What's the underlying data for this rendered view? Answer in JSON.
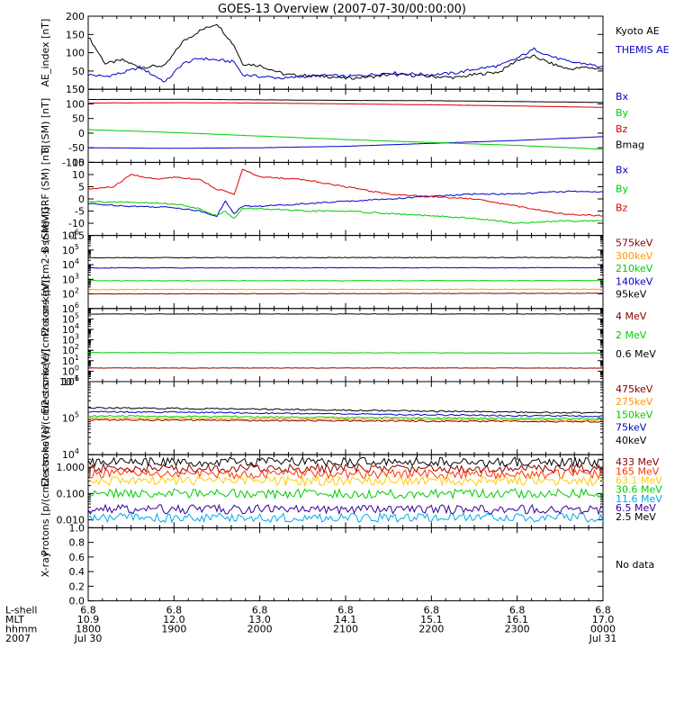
{
  "title": "GOES-13 Overview (2007-07-30/00:00:00)",
  "time_axis": {
    "row_labels": [
      "L-shell",
      "MLT",
      "hhmm",
      "2007"
    ],
    "ticks": [
      {
        "lshell": "6.8",
        "mlt": "10.9",
        "hhmm": "1800",
        "date": "Jul 30"
      },
      {
        "lshell": "6.8",
        "mlt": "12.0",
        "hhmm": "1900",
        "date": ""
      },
      {
        "lshell": "6.8",
        "mlt": "13.0",
        "hhmm": "2000",
        "date": ""
      },
      {
        "lshell": "6.8",
        "mlt": "14.1",
        "hhmm": "2100",
        "date": ""
      },
      {
        "lshell": "6.8",
        "mlt": "15.1",
        "hhmm": "2200",
        "date": ""
      },
      {
        "lshell": "6.8",
        "mlt": "16.1",
        "hhmm": "2300",
        "date": ""
      },
      {
        "lshell": "6.8",
        "mlt": "17.0",
        "hhmm": "0000",
        "date": "Jul 31"
      }
    ]
  },
  "chart_data": [
    {
      "type": "line",
      "ylabel": "AE_index [nT]",
      "ylim": [
        0,
        200
      ],
      "yscale": "linear",
      "yticks": [
        "0",
        "50",
        "100",
        "150",
        "200"
      ],
      "series": [
        {
          "name": "Kyoto AE",
          "color": "#000000",
          "x": [
            18.0,
            18.2,
            18.4,
            18.6,
            18.9,
            19.1,
            19.3,
            19.5,
            19.7,
            19.8,
            20.0,
            20.3,
            20.5,
            20.8,
            21.0,
            21.3,
            21.5,
            21.8,
            22.0,
            22.3,
            22.5,
            22.8,
            23.0,
            23.2,
            23.4,
            23.6,
            23.8,
            24.0
          ],
          "y": [
            145,
            70,
            80,
            60,
            65,
            130,
            160,
            180,
            120,
            70,
            65,
            40,
            38,
            35,
            30,
            34,
            40,
            38,
            35,
            32,
            40,
            48,
            80,
            90,
            70,
            55,
            60,
            55
          ]
        },
        {
          "name": "THEMIS AE",
          "color": "#0000cc",
          "x": [
            18.0,
            18.2,
            18.4,
            18.6,
            18.9,
            19.1,
            19.3,
            19.5,
            19.7,
            19.8,
            20.0,
            20.3,
            20.5,
            20.8,
            21.0,
            21.3,
            21.5,
            21.8,
            22.0,
            22.3,
            22.5,
            22.8,
            23.0,
            23.2,
            23.4,
            23.6,
            23.8,
            24.0
          ],
          "y": [
            40,
            35,
            45,
            60,
            20,
            70,
            85,
            80,
            75,
            40,
            35,
            30,
            35,
            38,
            35,
            40,
            45,
            42,
            40,
            45,
            55,
            65,
            85,
            110,
            90,
            75,
            70,
            60
          ]
        }
      ]
    },
    {
      "type": "line",
      "ylabel": "B (SM) [nT]",
      "ylim": [
        -100,
        150
      ],
      "yscale": "linear",
      "yticks": [
        "-100",
        "-50",
        "0",
        "50",
        "100",
        "150"
      ],
      "series": [
        {
          "name": "Bx",
          "color": "#0000cc",
          "x": [
            18,
            19,
            20,
            21,
            22,
            23,
            24
          ],
          "y": [
            -50,
            -52,
            -50,
            -45,
            -35,
            -25,
            -12
          ]
        },
        {
          "name": "By",
          "color": "#00cc00",
          "x": [
            18,
            19,
            20,
            21,
            22,
            23,
            24
          ],
          "y": [
            12,
            2,
            -10,
            -22,
            -32,
            -42,
            -55
          ]
        },
        {
          "name": "Bz",
          "color": "#dd0000",
          "x": [
            18,
            19,
            20,
            21,
            22,
            23,
            24
          ],
          "y": [
            103,
            104,
            103,
            100,
            97,
            93,
            88
          ]
        },
        {
          "name": "Bmag",
          "color": "#000000",
          "x": [
            18,
            19,
            20,
            21,
            22,
            23,
            24
          ],
          "y": [
            115,
            116,
            114,
            112,
            111,
            108,
            105
          ]
        }
      ]
    },
    {
      "type": "line",
      "ylabel": "B (SM)-IGRF (SM) [nT]",
      "ylim": [
        -15,
        15
      ],
      "yscale": "linear",
      "yticks": [
        "-15",
        "-10",
        "-5",
        "0",
        "5",
        "10",
        "15"
      ],
      "series": [
        {
          "name": "Bx",
          "color": "#0000cc",
          "x": [
            18,
            18.5,
            19,
            19.3,
            19.5,
            19.6,
            19.7,
            19.8,
            20,
            20.5,
            21,
            21.5,
            22,
            22.5,
            23,
            23.5,
            24
          ],
          "y": [
            -2,
            -3,
            -3.5,
            -5,
            -7,
            -1,
            -6,
            -3,
            -3,
            -2,
            -1,
            0,
            1,
            2,
            2,
            3,
            3
          ]
        },
        {
          "name": "By",
          "color": "#00cc00",
          "x": [
            18,
            18.5,
            19,
            19.3,
            19.5,
            19.6,
            19.7,
            19.8,
            20,
            20.5,
            21,
            21.5,
            22,
            22.5,
            23,
            23.5,
            24
          ],
          "y": [
            -1,
            -1.5,
            -2,
            -4,
            -7,
            -5,
            -8,
            -4,
            -4,
            -5,
            -5,
            -6,
            -7,
            -8,
            -10,
            -9,
            -9
          ]
        },
        {
          "name": "Bz",
          "color": "#dd0000",
          "x": [
            18,
            18.3,
            18.5,
            18.8,
            19,
            19.3,
            19.5,
            19.7,
            19.8,
            20,
            20.5,
            21,
            21.5,
            22,
            22.5,
            23,
            23.5,
            24
          ],
          "y": [
            4,
            5,
            10,
            8,
            9,
            8,
            4,
            2,
            12,
            9,
            8,
            5,
            2,
            1,
            0,
            -3,
            -6,
            -7
          ]
        }
      ]
    },
    {
      "type": "line",
      "ylabel": "Protons [p/(cm2-s-sr-keV)]",
      "ylim": [
        10,
        1000000
      ],
      "yscale": "log",
      "yticks": [
        "10^2",
        "10^3",
        "10^4",
        "10^5",
        "10^6"
      ],
      "series": [
        {
          "name": "575keV",
          "color": "#880000",
          "x": [
            18,
            24
          ],
          "y": [
            100,
            110
          ]
        },
        {
          "name": "300keV",
          "color": "#ff9900",
          "x": [
            18,
            24
          ],
          "y": [
            200,
            210
          ]
        },
        {
          "name": "210keV",
          "color": "#00cc00",
          "x": [
            18,
            24
          ],
          "y": [
            800,
            820
          ]
        },
        {
          "name": "140keV",
          "color": "#0000cc",
          "x": [
            18,
            24
          ],
          "y": [
            6000,
            6200
          ]
        },
        {
          "name": "95keV",
          "color": "#000000",
          "x": [
            18,
            24
          ],
          "y": [
            30000,
            31000
          ]
        }
      ]
    },
    {
      "type": "line",
      "ylabel": "Electrons [e/(cm2-s-sr-keV)]",
      "ylim": [
        0.1,
        1000000
      ],
      "yscale": "log",
      "yticks": [
        "10^-1",
        "10^0",
        "10^1",
        "10^2",
        "10^3",
        "10^4",
        "10^5",
        "10^6"
      ],
      "series": [
        {
          "name": "4 MeV",
          "color": "#880000",
          "x": [
            18,
            24
          ],
          "y": [
            2,
            2
          ]
        },
        {
          "name": "2 MeV",
          "color": "#00cc00",
          "x": [
            18,
            24
          ],
          "y": [
            60,
            55
          ]
        },
        {
          "name": "0.6 MeV",
          "color": "#000000",
          "x": [
            18,
            24
          ],
          "y": [
            300000,
            300000
          ]
        }
      ]
    },
    {
      "type": "line",
      "ylabel": "Electrons [e/(cm2-s-sr-keV)]",
      "ylim": [
        10000,
        1000000
      ],
      "yscale": "log",
      "yticks": [
        "10^4",
        "10^5",
        "10^6"
      ],
      "series": [
        {
          "name": "475keV",
          "color": "#880000",
          "x": [
            18,
            19,
            20,
            21,
            22,
            23,
            24
          ],
          "y": [
            90000,
            88000,
            86000,
            84000,
            83000,
            82000,
            80000
          ]
        },
        {
          "name": "275keV",
          "color": "#ff9900",
          "x": [
            18,
            19,
            20,
            21,
            22,
            23,
            24
          ],
          "y": [
            100000,
            98000,
            95000,
            93000,
            91000,
            89000,
            87000
          ]
        },
        {
          "name": "150keV",
          "color": "#00cc00",
          "x": [
            18,
            19,
            20,
            21,
            22,
            23,
            24
          ],
          "y": [
            115000,
            112000,
            108000,
            104000,
            101000,
            98000,
            96000
          ]
        },
        {
          "name": "75keV",
          "color": "#0000cc",
          "x": [
            18,
            19,
            20,
            21,
            22,
            23,
            24
          ],
          "y": [
            150000,
            145000,
            138000,
            130000,
            123000,
            117000,
            112000
          ]
        },
        {
          "name": "40keV",
          "color": "#000000",
          "x": [
            18,
            19,
            20,
            21,
            22,
            23,
            24
          ],
          "y": [
            190000,
            185000,
            175000,
            165000,
            155000,
            145000,
            138000
          ]
        }
      ]
    },
    {
      "type": "line",
      "ylabel": "Protons [p/(cm2-s-sr-keV)]",
      "ylim": [
        0.005,
        3
      ],
      "yscale": "log",
      "yticks": [
        "0.010",
        "0.100",
        "1.000"
      ],
      "series": [
        {
          "name": "433 MeV",
          "color": "#880000",
          "x": [
            18,
            24
          ],
          "y": [
            0.9,
            0.9
          ]
        },
        {
          "name": "165 MeV",
          "color": "#ff3300",
          "x": [
            18,
            24
          ],
          "y": [
            0.55,
            0.55
          ]
        },
        {
          "name": "63.1 MeV",
          "color": "#ffcc00",
          "x": [
            18,
            24
          ],
          "y": [
            0.3,
            0.3
          ]
        },
        {
          "name": "30.6 MeV",
          "color": "#00cc00",
          "x": [
            18,
            24
          ],
          "y": [
            0.1,
            0.1
          ]
        },
        {
          "name": "11.6 MeV",
          "color": "#00aaee",
          "x": [
            18,
            24
          ],
          "y": [
            0.012,
            0.012
          ]
        },
        {
          "name": "6.5 MeV",
          "color": "#330099",
          "x": [
            18,
            24
          ],
          "y": [
            0.025,
            0.025
          ]
        },
        {
          "name": "2.5 MeV",
          "color": "#000000",
          "x": [
            18,
            24
          ],
          "y": [
            1.6,
            1.6
          ]
        }
      ]
    },
    {
      "type": "line",
      "ylabel": "X-ray",
      "ylim": [
        0,
        1
      ],
      "yscale": "linear",
      "yticks": [
        "0.0",
        "0.2",
        "0.4",
        "0.6",
        "0.8",
        "1.0"
      ],
      "series": [],
      "no_data_label": "No data"
    }
  ]
}
